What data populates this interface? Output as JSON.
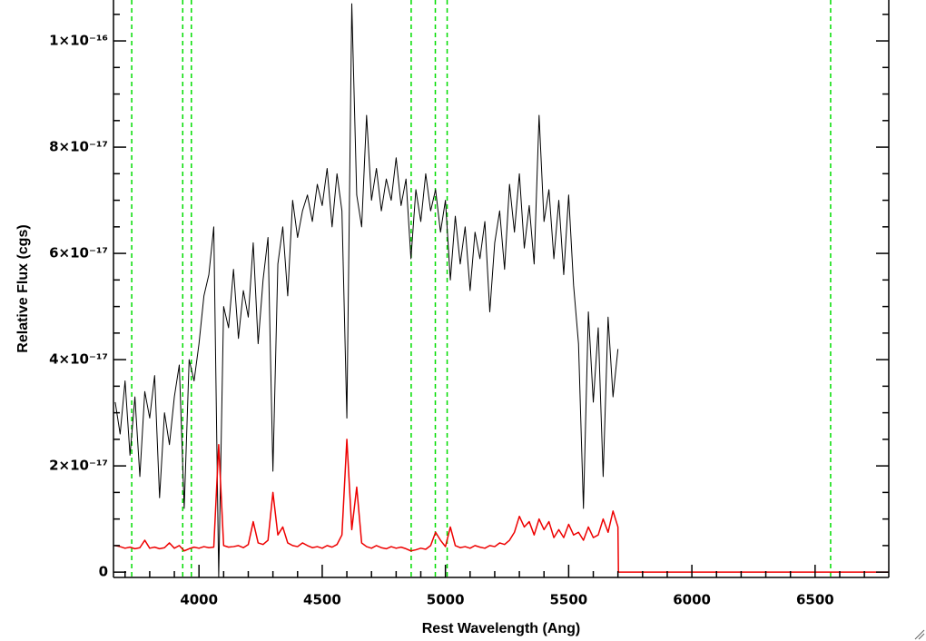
{
  "chart_data": {
    "type": "line",
    "xlabel": "Rest Wavelength (Ang)",
    "ylabel": "Relative Flux (cgs)",
    "xlim": [
      3653,
      6799
    ],
    "ylim": [
      -1e-18,
      1.077e-16
    ],
    "xticks": [
      4000,
      4500,
      5000,
      5500,
      6000,
      6500
    ],
    "yticks": [
      0,
      {
        "value": 2e-17,
        "label": "2×10⁻¹⁷"
      },
      {
        "value": 4e-17,
        "label": "4×10⁻¹⁷"
      },
      {
        "value": 6e-17,
        "label": "6×10⁻¹⁷"
      },
      {
        "value": 8e-17,
        "label": "8×10⁻¹⁷"
      },
      {
        "value": 1e-16,
        "label": "1×10⁻¹⁶"
      }
    ],
    "xminorticks": [
      3700,
      3800,
      3900,
      4100,
      4200,
      4300,
      4400,
      4600,
      4700,
      4800,
      4900,
      5100,
      5200,
      5300,
      5400,
      5600,
      5700,
      5800,
      5900,
      6100,
      6200,
      6300,
      6400,
      6600,
      6700
    ],
    "yminorticks": [
      5e-18,
      1e-17,
      1.5e-17,
      2.5e-17,
      3e-17,
      3.5e-17,
      4.5e-17,
      5e-17,
      5.5e-17,
      6.5e-17,
      7e-17,
      7.5e-17,
      8.5e-17,
      9e-17,
      9.5e-17,
      1.05e-16
    ],
    "vlines": [
      3727,
      3934,
      3969,
      4861,
      4959,
      5007,
      6563
    ],
    "vline_color": "#00dd00",
    "series": [
      {
        "color": "#000000",
        "x": [
          3660,
          3680,
          3700,
          3720,
          3740,
          3760,
          3780,
          3800,
          3820,
          3840,
          3860,
          3880,
          3900,
          3920,
          3940,
          3960,
          3980,
          4000,
          4020,
          4040,
          4060,
          4080,
          4100,
          4120,
          4140,
          4160,
          4180,
          4200,
          4220,
          4240,
          4260,
          4280,
          4300,
          4320,
          4340,
          4360,
          4380,
          4400,
          4420,
          4440,
          4460,
          4480,
          4500,
          4520,
          4540,
          4560,
          4580,
          4600,
          4620,
          4640,
          4660,
          4680,
          4700,
          4720,
          4740,
          4760,
          4780,
          4800,
          4820,
          4840,
          4860,
          4880,
          4900,
          4920,
          4940,
          4960,
          4980,
          5000,
          5020,
          5040,
          5060,
          5080,
          5100,
          5120,
          5140,
          5160,
          5180,
          5200,
          5220,
          5240,
          5260,
          5280,
          5300,
          5320,
          5340,
          5360,
          5380,
          5400,
          5420,
          5440,
          5460,
          5480,
          5500,
          5520,
          5540,
          5560,
          5580,
          5600,
          5620,
          5640,
          5660,
          5680,
          5700
        ],
        "values": [
          3.2e-17,
          2.6e-17,
          3.6e-17,
          2.2e-17,
          3.3e-17,
          1.8e-17,
          3.4e-17,
          2.9e-17,
          3.7e-17,
          1.4e-17,
          3e-17,
          2.4e-17,
          3.3e-17,
          3.9e-17,
          1.2e-17,
          4e-17,
          3.6e-17,
          4.3e-17,
          5.2e-17,
          5.6e-17,
          6.5e-17,
          -1e-18,
          5e-17,
          4.6e-17,
          5.7e-17,
          4.4e-17,
          5.3e-17,
          4.8e-17,
          6.2e-17,
          4.3e-17,
          5.5e-17,
          6.3e-17,
          1.9e-17,
          5.8e-17,
          6.5e-17,
          5.2e-17,
          7e-17,
          6.3e-17,
          6.8e-17,
          7.1e-17,
          6.6e-17,
          7.3e-17,
          6.9e-17,
          7.6e-17,
          6.5e-17,
          7.5e-17,
          6.8e-17,
          2.9e-17,
          1.07e-16,
          7.1e-17,
          6.5e-17,
          8.6e-17,
          7e-17,
          7.6e-17,
          6.8e-17,
          7.4e-17,
          7e-17,
          7.8e-17,
          6.9e-17,
          7.4e-17,
          5.9e-17,
          7.2e-17,
          6.6e-17,
          7.5e-17,
          6.8e-17,
          7.2e-17,
          6.4e-17,
          7e-17,
          5.5e-17,
          6.7e-17,
          5.8e-17,
          6.5e-17,
          5.3e-17,
          6.4e-17,
          5.9e-17,
          6.6e-17,
          4.9e-17,
          6.2e-17,
          6.8e-17,
          5.7e-17,
          7.3e-17,
          6.4e-17,
          7.5e-17,
          6.1e-17,
          6.9e-17,
          5.8e-17,
          8.6e-17,
          6.6e-17,
          7.2e-17,
          5.9e-17,
          7e-17,
          5.6e-17,
          7.1e-17,
          5.4e-17,
          4.3e-17,
          1.2e-17,
          4.9e-17,
          3.2e-17,
          4.6e-17,
          1.8e-17,
          4.8e-17,
          3.3e-17,
          4.2e-17
        ]
      },
      {
        "color": "#ee0000",
        "x": [
          3660,
          3680,
          3700,
          3720,
          3740,
          3760,
          3780,
          3800,
          3820,
          3840,
          3860,
          3880,
          3900,
          3920,
          3940,
          3960,
          3980,
          4000,
          4020,
          4040,
          4060,
          4080,
          4100,
          4120,
          4140,
          4160,
          4180,
          4200,
          4220,
          4240,
          4260,
          4280,
          4300,
          4320,
          4340,
          4360,
          4380,
          4400,
          4420,
          4440,
          4460,
          4480,
          4500,
          4520,
          4540,
          4560,
          4580,
          4600,
          4620,
          4640,
          4660,
          4680,
          4700,
          4720,
          4740,
          4760,
          4780,
          4800,
          4820,
          4840,
          4860,
          4880,
          4900,
          4920,
          4940,
          4960,
          4980,
          5000,
          5020,
          5040,
          5060,
          5080,
          5100,
          5120,
          5140,
          5160,
          5180,
          5200,
          5220,
          5240,
          5260,
          5280,
          5300,
          5320,
          5340,
          5360,
          5380,
          5400,
          5420,
          5440,
          5460,
          5480,
          5500,
          5520,
          5540,
          5560,
          5580,
          5600,
          5620,
          5640,
          5660,
          5680,
          5700,
          5702,
          6799
        ],
        "values": [
          5e-18,
          4.8e-18,
          4.5e-18,
          4.7e-18,
          4.4e-18,
          4.6e-18,
          6e-18,
          4.5e-18,
          4.7e-18,
          4.4e-18,
          4.6e-18,
          5.5e-18,
          4.5e-18,
          5e-18,
          4e-18,
          4.4e-18,
          4.7e-18,
          4.5e-18,
          4.8e-18,
          4.6e-18,
          4.7e-18,
          2.4e-17,
          5e-18,
          4.7e-18,
          4.8e-18,
          5e-18,
          4.6e-18,
          5.2e-18,
          9.5e-18,
          5.5e-18,
          5.2e-18,
          6e-18,
          1.5e-17,
          7e-18,
          8.5e-18,
          5.5e-18,
          5e-18,
          4.8e-18,
          5.5e-18,
          5e-18,
          4.6e-18,
          4.8e-18,
          4.5e-18,
          5e-18,
          4.7e-18,
          5.2e-18,
          7e-18,
          2.5e-17,
          8e-18,
          1.6e-17,
          5.5e-18,
          4.8e-18,
          4.5e-18,
          5e-18,
          4.6e-18,
          4.4e-18,
          4.8e-18,
          4.5e-18,
          4.7e-18,
          4.4e-18,
          4e-18,
          4.2e-18,
          4.5e-18,
          4.3e-18,
          5e-18,
          7.5e-18,
          6e-18,
          4.8e-18,
          8.5e-18,
          5e-18,
          4.6e-18,
          4.8e-18,
          4.5e-18,
          5e-18,
          4.7e-18,
          4.5e-18,
          5e-18,
          4.8e-18,
          5.5e-18,
          5.2e-18,
          6e-18,
          7.5e-18,
          1.05e-17,
          8.5e-18,
          9.5e-18,
          7e-18,
          1e-17,
          8e-18,
          9.5e-18,
          6.5e-18,
          8e-18,
          6.5e-18,
          9e-18,
          7e-18,
          7.5e-18,
          6e-18,
          8.5e-18,
          6.5e-18,
          7e-18,
          1e-17,
          7.5e-18,
          1.15e-17,
          8.5e-18,
          0,
          0
        ]
      }
    ]
  }
}
